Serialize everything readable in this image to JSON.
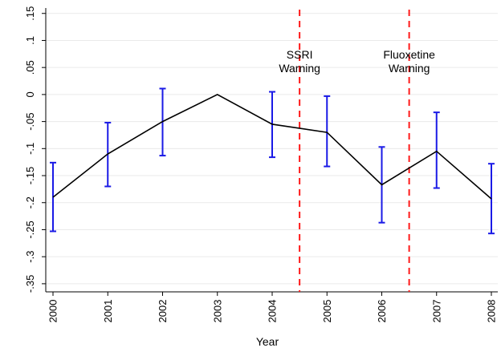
{
  "chart_data": {
    "type": "line",
    "title": "",
    "xlabel": "Year",
    "ylabel": "",
    "x": [
      2000,
      2001,
      2002,
      2003,
      2004,
      2005,
      2006,
      2007,
      2008
    ],
    "x_tick_labels": [
      "2000",
      "2001",
      "2002",
      "2003",
      "2004",
      "2005",
      "2006",
      "2007",
      "2008"
    ],
    "y_ticks": [
      0.15,
      0.1,
      0.05,
      0,
      -0.05,
      -0.1,
      -0.15,
      -0.2,
      -0.25,
      -0.3,
      -0.35
    ],
    "y_tick_labels": [
      ".15",
      ".1",
      ".05",
      "0",
      "-.05",
      "-.1",
      "-.15",
      "-.2",
      "-.25",
      "-.3",
      "-.35"
    ],
    "ylim": [
      -0.365,
      0.16
    ],
    "xlim": [
      2000,
      2008
    ],
    "grid": true,
    "series": [
      {
        "values": [
          -0.19,
          -0.11,
          -0.05,
          0.0,
          -0.055,
          -0.07,
          -0.167,
          -0.105,
          -0.193
        ],
        "ci_upper": [
          -0.126,
          -0.052,
          0.011,
          null,
          0.005,
          -0.003,
          -0.097,
          -0.033,
          -0.128
        ],
        "ci_lower": [
          -0.253,
          -0.17,
          -0.113,
          null,
          -0.116,
          -0.133,
          -0.237,
          -0.173,
          -0.257
        ],
        "line_color": "#000000",
        "ci_color": "#1a1ae6"
      }
    ],
    "annotations": [
      {
        "x": 2004.5,
        "lines": [
          "SSRI",
          "Warning"
        ],
        "line_color": "#ff1a1a"
      },
      {
        "x": 2006.5,
        "lines": [
          "Fluoxetine",
          "Warning"
        ],
        "line_color": "#ff1a1a"
      }
    ]
  }
}
